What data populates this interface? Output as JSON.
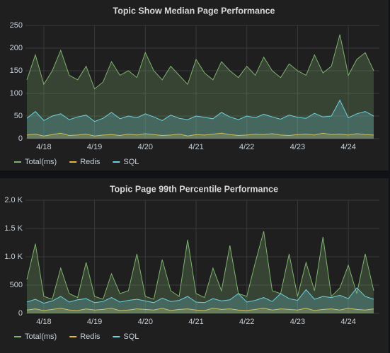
{
  "chart_data": [
    {
      "type": "line",
      "title": "Topic Show Median Page Performance",
      "categories": [
        null,
        null,
        "4/18",
        null,
        null,
        null,
        null,
        null,
        "4/19",
        null,
        null,
        null,
        null,
        null,
        "4/20",
        null,
        null,
        null,
        null,
        null,
        "4/21",
        null,
        null,
        null,
        null,
        null,
        "4/22",
        null,
        null,
        null,
        null,
        null,
        "4/23",
        null,
        null,
        null,
        null,
        null,
        "4/24",
        null,
        null,
        null
      ],
      "series": [
        {
          "name": "Total(ms)",
          "color": "#7eb26d",
          "values": [
            130,
            185,
            120,
            150,
            195,
            140,
            130,
            160,
            110,
            125,
            170,
            140,
            150,
            135,
            190,
            150,
            130,
            160,
            140,
            120,
            175,
            145,
            130,
            170,
            150,
            135,
            160,
            140,
            180,
            150,
            135,
            165,
            150,
            140,
            185,
            145,
            160,
            230,
            140,
            175,
            190,
            150
          ]
        },
        {
          "name": "Redis",
          "color": "#eab839",
          "values": [
            8,
            10,
            6,
            9,
            12,
            7,
            8,
            10,
            6,
            8,
            9,
            7,
            10,
            8,
            11,
            9,
            7,
            8,
            10,
            6,
            9,
            8,
            10,
            12,
            9,
            7,
            8,
            10,
            9,
            11,
            8,
            7,
            9,
            10,
            8,
            12,
            9,
            10,
            8,
            11,
            9,
            8
          ]
        },
        {
          "name": "SQL",
          "color": "#6ed0e0",
          "values": [
            45,
            60,
            40,
            50,
            55,
            42,
            48,
            52,
            38,
            45,
            58,
            44,
            50,
            46,
            55,
            48,
            40,
            52,
            45,
            42,
            50,
            47,
            44,
            58,
            48,
            42,
            50,
            46,
            54,
            48,
            43,
            52,
            47,
            45,
            56,
            48,
            50,
            85,
            46,
            55,
            60,
            50
          ]
        }
      ],
      "ylim": [
        0,
        250
      ],
      "yticks": [
        0,
        50,
        100,
        150,
        200,
        250
      ],
      "grid": true
    },
    {
      "type": "line",
      "title": "Topic Page 99th Percentile Performance",
      "categories": [
        null,
        null,
        "4/18",
        null,
        null,
        null,
        null,
        null,
        "4/19",
        null,
        null,
        null,
        null,
        null,
        "4/20",
        null,
        null,
        null,
        null,
        null,
        "4/21",
        null,
        null,
        null,
        null,
        null,
        "4/22",
        null,
        null,
        null,
        null,
        null,
        "4/23",
        null,
        null,
        null,
        null,
        null,
        "4/24",
        null,
        null,
        null
      ],
      "series": [
        {
          "name": "Total(ms)",
          "color": "#7eb26d",
          "values": [
            600,
            1230,
            300,
            250,
            800,
            350,
            280,
            900,
            300,
            250,
            700,
            350,
            400,
            1050,
            300,
            250,
            950,
            400,
            300,
            1300,
            350,
            280,
            800,
            400,
            1200,
            350,
            300,
            900,
            1450,
            400,
            350,
            1050,
            300,
            900,
            400,
            1350,
            300,
            450,
            850,
            350,
            1050,
            400
          ]
        },
        {
          "name": "Redis",
          "color": "#eab839",
          "values": [
            60,
            80,
            50,
            70,
            90,
            60,
            50,
            80,
            60,
            70,
            90,
            50,
            60,
            80,
            70,
            60,
            90,
            50,
            70,
            80,
            60,
            50,
            90,
            70,
            80,
            60,
            50,
            70,
            90,
            60,
            80,
            70,
            60,
            90,
            50,
            70,
            80,
            60,
            90,
            70,
            60,
            80
          ]
        },
        {
          "name": "SQL",
          "color": "#6ed0e0",
          "values": [
            200,
            250,
            180,
            220,
            300,
            200,
            240,
            260,
            190,
            210,
            280,
            200,
            230,
            250,
            220,
            190,
            270,
            210,
            230,
            300,
            200,
            190,
            260,
            220,
            240,
            350,
            200,
            230,
            280,
            210,
            350,
            260,
            230,
            420,
            250,
            300,
            280,
            320,
            260,
            450,
            300,
            250
          ]
        }
      ],
      "ylim": [
        0,
        2000
      ],
      "yticks": [
        0,
        500,
        {
          "value": 1000,
          "label": "1.0 K"
        },
        {
          "value": 1500,
          "label": "1.5 K"
        },
        {
          "value": 2000,
          "label": "2.0 K"
        }
      ],
      "grid": true
    }
  ]
}
